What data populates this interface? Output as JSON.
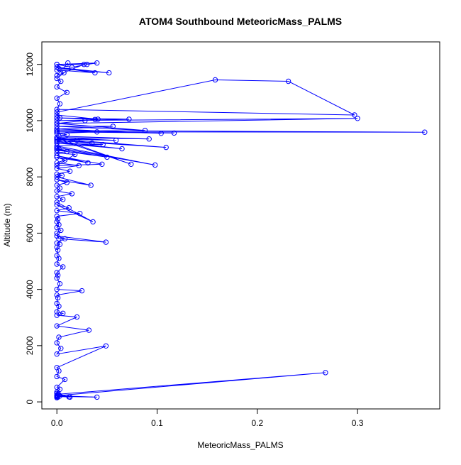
{
  "chart_data": {
    "type": "scatter",
    "title": "ATOM4 Southbound MeteoricMass_PALMS",
    "xlabel": "MeteoricMass_PALMS",
    "ylabel": "Altitude (m)",
    "xlim": [
      -0.015,
      0.382
    ],
    "ylim": [
      -250,
      12800
    ],
    "xticks": [
      0.0,
      0.1,
      0.2,
      0.3
    ],
    "xtick_labels": [
      "0.0",
      "0.1",
      "0.2",
      "0.3"
    ],
    "yticks": [
      0,
      2000,
      4000,
      6000,
      8000,
      10000,
      12000
    ],
    "ytick_labels": [
      "0",
      "2000",
      "4000",
      "6000",
      "8000",
      "10000",
      "12000"
    ],
    "grid": false,
    "legend": "none",
    "series": [
      {
        "color": "#0000ff",
        "marker": "open-circle",
        "line": true,
        "x": [
          0.0,
          0.001,
          0.0,
          0.003,
          0.0,
          0.002,
          0.0,
          0.012,
          0.013,
          0.0,
          0.04,
          0.0,
          0.268,
          0.001,
          0.0,
          0.003,
          0.0,
          0.008,
          0.0,
          0.002,
          0.0,
          0.049,
          0.0,
          0.004,
          0.0,
          0.002,
          0.032,
          0.0,
          0.02,
          0.0,
          0.006,
          0.0,
          0.002,
          0.0,
          0.001,
          0.0,
          0.025,
          0.0,
          0.003,
          0.0,
          0.001,
          0.0,
          0.006,
          0.0,
          0.002,
          0.0,
          0.001,
          0.0,
          0.003,
          0.0,
          0.008,
          0.0,
          0.049,
          0.002,
          0.0,
          0.004,
          0.0,
          0.002,
          0.0,
          0.001,
          0.0,
          0.023,
          0.0,
          0.012,
          0.0,
          0.036,
          0.0,
          0.006,
          0.0,
          0.015,
          0.0,
          0.003,
          0.0,
          0.01,
          0.0,
          0.034,
          0.0,
          0.005,
          0.0,
          0.013,
          0.0,
          0.022,
          0.0,
          0.008,
          0.0,
          0.031,
          0.0,
          0.045,
          0.0,
          0.018,
          0.0,
          0.01,
          0.0,
          0.05,
          0.0,
          0.002,
          0.0,
          0.098,
          0.0,
          0.046,
          0.0,
          0.065,
          0.0,
          0.02,
          0.0,
          0.074,
          0.0,
          0.035,
          0.0,
          0.109,
          0.0,
          0.059,
          0.0,
          0.092,
          0.002,
          0.01,
          0.0,
          0.04,
          0.0,
          0.117,
          0.0,
          0.367,
          0.0,
          0.104,
          0.0,
          0.056,
          0.0,
          0.088,
          0.0,
          0.028,
          0.0,
          0.3,
          0.0,
          0.072,
          0.0,
          0.038,
          0.0,
          0.041,
          0.0,
          0.003,
          0.0,
          0.158,
          0.231,
          0.297,
          0.0,
          0.003,
          0.0,
          0.01,
          0.0,
          0.004,
          0.0,
          0.007,
          0.0,
          0.038,
          0.0,
          0.052,
          0.002,
          0.0,
          0.015,
          0.03,
          0.04,
          0.0,
          0.027,
          0.0,
          0.011
        ],
        "y": [
          150,
          170,
          180,
          210,
          240,
          260,
          300,
          180,
          170,
          200,
          170,
          220,
          1040,
          270,
          350,
          450,
          520,
          800,
          900,
          1100,
          1220,
          1990,
          1700,
          1900,
          2100,
          2300,
          2550,
          2700,
          3020,
          3080,
          3150,
          3200,
          3400,
          3500,
          3700,
          3800,
          3950,
          4000,
          4200,
          4400,
          4500,
          4600,
          4800,
          4900,
          5100,
          5200,
          5400,
          5500,
          5600,
          5650,
          5800,
          5900,
          5680,
          5800,
          6000,
          6100,
          6200,
          6300,
          6400,
          6500,
          6600,
          6700,
          6800,
          6900,
          7000,
          6400,
          7100,
          7200,
          7300,
          7400,
          7500,
          7600,
          7700,
          7800,
          7900,
          7700,
          8000,
          8050,
          8100,
          8200,
          8300,
          8400,
          8500,
          8600,
          8700,
          8500,
          8750,
          8450,
          8400,
          8800,
          8850,
          8900,
          9000,
          8700,
          8950,
          9000,
          9050,
          8420,
          9100,
          9150,
          9200,
          9000,
          9250,
          9300,
          9350,
          8450,
          9400,
          9200,
          9300,
          9050,
          9350,
          9300,
          9400,
          9350,
          9450,
          9500,
          9550,
          9600,
          9600,
          9560,
          9600,
          9590,
          9650,
          9550,
          9700,
          9800,
          9800,
          9650,
          9900,
          10000,
          9900,
          10080,
          10000,
          10050,
          10100,
          10040,
          10100,
          10050,
          10200,
          10100,
          10300,
          11450,
          11400,
          10200,
          10400,
          10600,
          10800,
          11000,
          11200,
          11400,
          11500,
          11700,
          11800,
          11700,
          11900,
          11700,
          11850,
          12000,
          11900,
          12000,
          12050,
          12000,
          12000,
          11600,
          12050
        ]
      }
    ]
  }
}
